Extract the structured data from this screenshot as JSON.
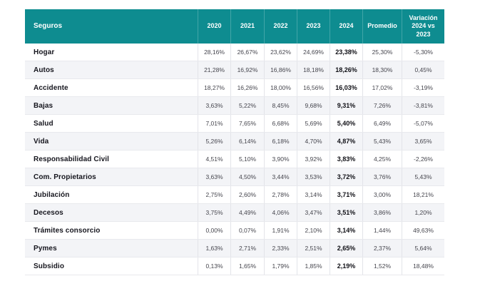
{
  "chart_data": {
    "type": "table",
    "title": "Seguros",
    "unit": "%",
    "decimal_separator_displayed": ",",
    "columns": [
      "Seguros",
      "2020",
      "2021",
      "2022",
      "2023",
      "2024",
      "Promedio",
      "Variación 2024 vs 2023"
    ],
    "rows": [
      {
        "label": "Hogar",
        "values_pct": [
          28.16,
          26.67,
          23.62,
          24.69,
          23.38,
          25.3,
          -5.3
        ]
      },
      {
        "label": "Autos",
        "values_pct": [
          21.28,
          16.92,
          16.86,
          18.18,
          18.26,
          18.3,
          0.45
        ]
      },
      {
        "label": "Accidente",
        "values_pct": [
          18.27,
          16.26,
          18.0,
          16.56,
          16.03,
          17.02,
          -3.19
        ]
      },
      {
        "label": "Bajas",
        "values_pct": [
          3.63,
          5.22,
          8.45,
          9.68,
          9.31,
          7.26,
          -3.81
        ]
      },
      {
        "label": "Salud",
        "values_pct": [
          7.01,
          7.65,
          6.68,
          5.69,
          5.4,
          6.49,
          -5.07
        ]
      },
      {
        "label": "Vida",
        "values_pct": [
          5.26,
          6.14,
          6.18,
          4.7,
          4.87,
          5.43,
          3.65
        ]
      },
      {
        "label": "Responsabilidad Civil",
        "values_pct": [
          4.51,
          5.1,
          3.9,
          3.92,
          3.83,
          4.25,
          -2.26
        ]
      },
      {
        "label": "Com. Propietarios",
        "values_pct": [
          3.63,
          4.5,
          3.44,
          3.53,
          3.72,
          3.76,
          5.43
        ]
      },
      {
        "label": "Jubilación",
        "values_pct": [
          2.75,
          2.6,
          2.78,
          3.14,
          3.71,
          3.0,
          18.21
        ]
      },
      {
        "label": "Decesos",
        "values_pct": [
          3.75,
          4.49,
          4.06,
          3.47,
          3.51,
          3.86,
          1.2
        ]
      },
      {
        "label": "Trámites consorcio",
        "values_pct": [
          0.0,
          0.07,
          1.91,
          2.1,
          3.14,
          1.44,
          49.63
        ]
      },
      {
        "label": "Pymes",
        "values_pct": [
          1.63,
          2.71,
          2.33,
          2.51,
          2.65,
          2.37,
          5.64
        ]
      },
      {
        "label": "Subsidio",
        "values_pct": [
          0.13,
          1.65,
          1.79,
          1.85,
          2.19,
          1.52,
          18.48
        ]
      }
    ]
  },
  "table": {
    "header": {
      "seguros": "Seguros",
      "y2020": "2020",
      "y2021": "2021",
      "y2022": "2022",
      "y2023": "2023",
      "y2024": "2024",
      "promedio": "Promedio",
      "variacion": "Variación 2024 vs 2023"
    },
    "rows": [
      {
        "label": "Hogar",
        "display": [
          "28,16%",
          "26,67%",
          "23,62%",
          "24,69%",
          "23,38%",
          "25,30%",
          "-5,30%"
        ]
      },
      {
        "label": "Autos",
        "display": [
          "21,28%",
          "16,92%",
          "16,86%",
          "18,18%",
          "18,26%",
          "18,30%",
          "0,45%"
        ]
      },
      {
        "label": "Accidente",
        "display": [
          "18,27%",
          "16,26%",
          "18,00%",
          "16,56%",
          "16,03%",
          "17,02%",
          "-3,19%"
        ]
      },
      {
        "label": "Bajas",
        "display": [
          "3,63%",
          "5,22%",
          "8,45%",
          "9,68%",
          "9,31%",
          "7,26%",
          "-3,81%"
        ]
      },
      {
        "label": "Salud",
        "display": [
          "7,01%",
          "7,65%",
          "6,68%",
          "5,69%",
          "5,40%",
          "6,49%",
          "-5,07%"
        ]
      },
      {
        "label": "Vida",
        "display": [
          "5,26%",
          "6,14%",
          "6,18%",
          "4,70%",
          "4,87%",
          "5,43%",
          "3,65%"
        ]
      },
      {
        "label": "Responsabilidad Civil",
        "display": [
          "4,51%",
          "5,10%",
          "3,90%",
          "3,92%",
          "3,83%",
          "4,25%",
          "-2,26%"
        ]
      },
      {
        "label": "Com. Propietarios",
        "display": [
          "3,63%",
          "4,50%",
          "3,44%",
          "3,53%",
          "3,72%",
          "3,76%",
          "5,43%"
        ]
      },
      {
        "label": "Jubilación",
        "display": [
          "2,75%",
          "2,60%",
          "2,78%",
          "3,14%",
          "3,71%",
          "3,00%",
          "18,21%"
        ]
      },
      {
        "label": "Decesos",
        "display": [
          "3,75%",
          "4,49%",
          "4,06%",
          "3,47%",
          "3,51%",
          "3,86%",
          "1,20%"
        ]
      },
      {
        "label": "Trámites consorcio",
        "display": [
          "0,00%",
          "0,07%",
          "1,91%",
          "2,10%",
          "3,14%",
          "1,44%",
          "49,63%"
        ]
      },
      {
        "label": "Pymes",
        "display": [
          "1,63%",
          "2,71%",
          "2,33%",
          "2,51%",
          "2,65%",
          "2,37%",
          "5,64%"
        ]
      },
      {
        "label": "Subsidio",
        "display": [
          "0,13%",
          "1,65%",
          "1,79%",
          "1,85%",
          "2,19%",
          "1,52%",
          "18,48%"
        ]
      }
    ]
  },
  "colors": {
    "header_bg": "#0e8c90",
    "header_text": "#ffffff",
    "row_alt_bg": "#f3f4f7",
    "grid_line": "#e3e4e9",
    "label_text": "#16161e",
    "value_text": "#46464e",
    "bold_value_text": "#101016"
  }
}
